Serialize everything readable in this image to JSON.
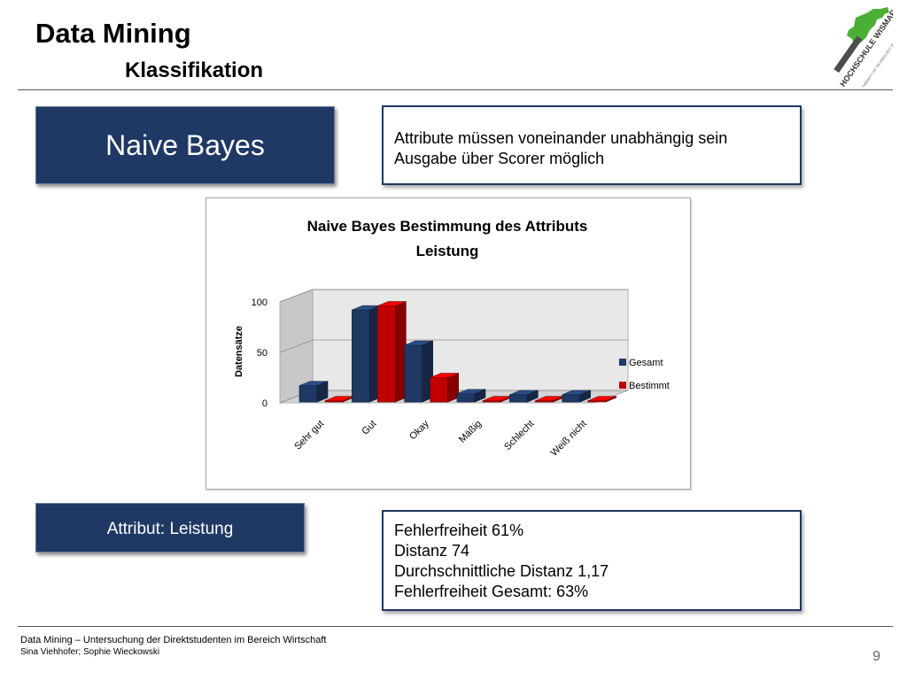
{
  "slide": {
    "title": "Data Mining",
    "subtitle": "Klassifikation",
    "logo": {
      "icon": "hochschule-wismar-logo-icon",
      "text": "HOCHSCHULE WISMAR",
      "subtext": "UNIVERSITY OF TECHNOLOGY, BUSINESS AND DESIGN"
    },
    "method_label": "Naive Bayes",
    "info_top": [
      "Attribute müssen voneinander unabhängig sein",
      "Ausgabe über Scorer möglich"
    ],
    "attribute_label": "Attribut: Leistung",
    "info_bottom": [
      "Fehlerfreiheit 61%",
      "Distanz 74",
      "Durchschnittliche Distanz 1,17",
      "Fehlerfreiheit Gesamt: 63%"
    ],
    "footer": {
      "line1": "Data Mining – Untersuchung der Direktstudenten im Bereich Wirtschaft",
      "line2": "Sina Viehhofer; Sophie Wieckowski"
    },
    "page_number": "9"
  },
  "chart_data": {
    "type": "bar",
    "title": "Naive Bayes Bestimmung des Attributs Leistung",
    "title_lines": [
      "Naive Bayes Bestimmung des Attributs",
      "Leistung"
    ],
    "ylabel": "Datensätze",
    "xlabel": "",
    "ylim": [
      0,
      100
    ],
    "yticks": [
      "0",
      "50",
      "100"
    ],
    "categories": [
      "Sehr gut",
      "Gut",
      "Okay",
      "Mäßig",
      "Schlecht",
      "Weiß nicht"
    ],
    "series": [
      {
        "name": "Gesamt",
        "color": "#1f3864",
        "values": [
          17,
          92,
          57,
          9,
          8,
          8
        ]
      },
      {
        "name": "Bestimmt",
        "color": "#c00000",
        "values": [
          2,
          96,
          25,
          2,
          2,
          2
        ]
      }
    ],
    "legend": "right",
    "grid": true
  }
}
